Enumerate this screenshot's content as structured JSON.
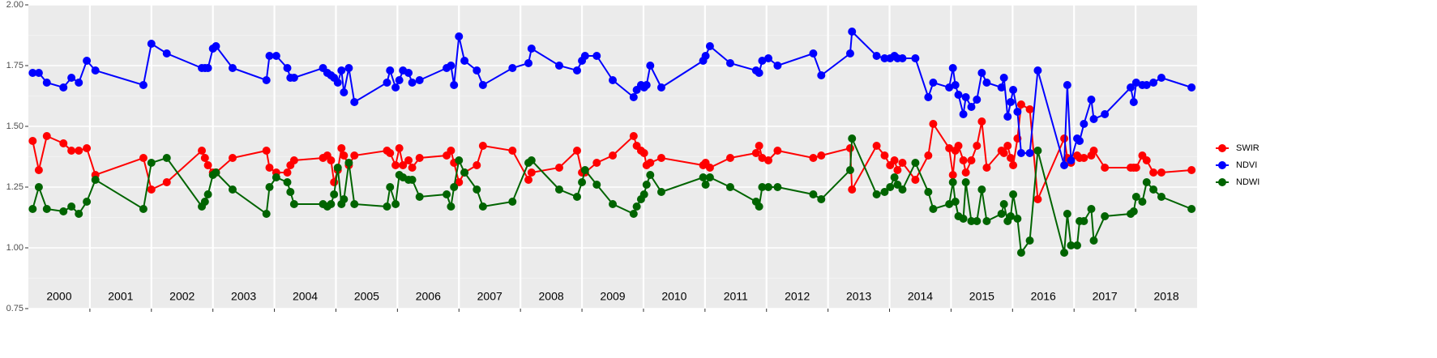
{
  "chart_data": {
    "type": "line",
    "x": [
      2000.07,
      2000.17,
      2000.3,
      2000.57,
      2000.7,
      2000.82,
      2000.95,
      2001.09,
      2001.87,
      2002.0,
      2002.25,
      2002.82,
      2002.87,
      2002.92,
      2003.0,
      2003.05,
      2003.32,
      2003.87,
      2003.92,
      2004.03,
      2004.21,
      2004.26,
      2004.32,
      2004.79,
      2004.86,
      2004.92,
      2004.97,
      2005.03,
      2005.09,
      2005.13,
      2005.21,
      2005.3,
      2005.83,
      2005.88,
      2005.97,
      2006.03,
      2006.09,
      2006.18,
      2006.24,
      2006.36,
      2006.8,
      2006.87,
      2006.92,
      2007.0,
      2007.09,
      2007.29,
      2007.39,
      2007.87,
      2008.13,
      2008.18,
      2008.63,
      2008.92,
      2009.0,
      2009.05,
      2009.24,
      2009.5,
      2009.84,
      2009.89,
      2009.96,
      2010.01,
      2010.05,
      2010.11,
      2010.29,
      2010.97,
      2011.01,
      2011.08,
      2011.41,
      2011.83,
      2011.88,
      2011.93,
      2012.03,
      2012.18,
      2012.76,
      2012.89,
      2013.36,
      2013.39,
      2013.79,
      2013.92,
      2014.01,
      2014.08,
      2014.13,
      2014.21,
      2014.42,
      2014.63,
      2014.71,
      2014.97,
      2015.03,
      2015.07,
      2015.12,
      2015.2,
      2015.24,
      2015.33,
      2015.42,
      2015.5,
      2015.58,
      2015.82,
      2015.86,
      2015.92,
      2015.97,
      2016.01,
      2016.08,
      2016.14,
      2016.28,
      2016.41,
      2016.84,
      2016.89,
      2016.95,
      2017.05,
      2017.09,
      2017.16,
      2017.28,
      2017.32,
      2017.5,
      2017.92,
      2017.97,
      2018.01,
      2018.11,
      2018.18,
      2018.29,
      2018.42,
      2018.91
    ],
    "series": [
      {
        "name": "SWIR",
        "color": "#ff0000",
        "values": [
          1.44,
          1.32,
          1.46,
          1.43,
          1.4,
          1.4,
          1.41,
          1.3,
          1.37,
          1.24,
          1.27,
          1.4,
          1.37,
          1.34,
          1.31,
          1.31,
          1.37,
          1.4,
          1.33,
          1.31,
          1.31,
          1.34,
          1.36,
          1.37,
          1.38,
          1.36,
          1.27,
          1.32,
          1.41,
          1.38,
          1.34,
          1.38,
          1.4,
          1.39,
          1.34,
          1.41,
          1.34,
          1.36,
          1.33,
          1.37,
          1.38,
          1.4,
          1.35,
          1.27,
          1.31,
          1.34,
          1.42,
          1.4,
          1.28,
          1.31,
          1.33,
          1.4,
          1.31,
          1.31,
          1.35,
          1.38,
          1.46,
          1.42,
          1.4,
          1.39,
          1.34,
          1.35,
          1.37,
          1.34,
          1.35,
          1.33,
          1.37,
          1.39,
          1.42,
          1.37,
          1.36,
          1.4,
          1.37,
          1.38,
          1.41,
          1.24,
          1.42,
          1.38,
          1.34,
          1.36,
          1.32,
          1.35,
          1.28,
          1.38,
          1.51,
          1.41,
          1.3,
          1.4,
          1.42,
          1.36,
          1.31,
          1.36,
          1.42,
          1.52,
          1.33,
          1.4,
          1.39,
          1.42,
          1.37,
          1.34,
          1.45,
          1.59,
          1.57,
          1.2,
          1.45,
          1.37,
          1.35,
          1.38,
          1.37,
          1.37,
          1.38,
          1.4,
          1.33,
          1.33,
          1.33,
          1.33,
          1.38,
          1.36,
          1.31,
          1.31,
          1.32
        ]
      },
      {
        "name": "NDVI",
        "color": "#0000ff",
        "values": [
          1.72,
          1.72,
          1.68,
          1.66,
          1.7,
          1.68,
          1.77,
          1.73,
          1.67,
          1.84,
          1.8,
          1.74,
          1.74,
          1.74,
          1.82,
          1.83,
          1.74,
          1.69,
          1.79,
          1.79,
          1.74,
          1.7,
          1.7,
          1.74,
          1.72,
          1.71,
          1.7,
          1.68,
          1.73,
          1.64,
          1.74,
          1.6,
          1.68,
          1.73,
          1.66,
          1.69,
          1.73,
          1.72,
          1.68,
          1.69,
          1.74,
          1.75,
          1.67,
          1.87,
          1.77,
          1.73,
          1.67,
          1.74,
          1.76,
          1.82,
          1.75,
          1.73,
          1.77,
          1.79,
          1.79,
          1.69,
          1.62,
          1.65,
          1.67,
          1.66,
          1.67,
          1.75,
          1.66,
          1.77,
          1.79,
          1.83,
          1.76,
          1.73,
          1.72,
          1.77,
          1.78,
          1.75,
          1.8,
          1.71,
          1.8,
          1.89,
          1.79,
          1.78,
          1.78,
          1.79,
          1.78,
          1.78,
          1.78,
          1.62,
          1.68,
          1.66,
          1.74,
          1.67,
          1.63,
          1.55,
          1.62,
          1.58,
          1.61,
          1.72,
          1.68,
          1.66,
          1.7,
          1.54,
          1.6,
          1.65,
          1.56,
          1.39,
          1.39,
          1.73,
          1.34,
          1.67,
          1.36,
          1.45,
          1.44,
          1.51,
          1.61,
          1.53,
          1.55,
          1.66,
          1.6,
          1.68,
          1.67,
          1.67,
          1.68,
          1.7,
          1.66
        ]
      },
      {
        "name": "NDWI",
        "color": "#006400",
        "values": [
          1.16,
          1.25,
          1.16,
          1.15,
          1.17,
          1.14,
          1.19,
          1.28,
          1.16,
          1.35,
          1.37,
          1.17,
          1.19,
          1.22,
          1.3,
          1.31,
          1.24,
          1.14,
          1.25,
          1.29,
          1.27,
          1.23,
          1.18,
          1.18,
          1.17,
          1.18,
          1.22,
          1.33,
          1.18,
          1.2,
          1.35,
          1.18,
          1.17,
          1.25,
          1.18,
          1.3,
          1.29,
          1.28,
          1.28,
          1.21,
          1.22,
          1.17,
          1.25,
          1.36,
          1.31,
          1.24,
          1.17,
          1.19,
          1.35,
          1.36,
          1.24,
          1.21,
          1.27,
          1.32,
          1.26,
          1.18,
          1.14,
          1.17,
          1.2,
          1.22,
          1.26,
          1.3,
          1.23,
          1.29,
          1.26,
          1.29,
          1.25,
          1.19,
          1.17,
          1.25,
          1.25,
          1.25,
          1.22,
          1.2,
          1.32,
          1.45,
          1.22,
          1.23,
          1.25,
          1.29,
          1.26,
          1.24,
          1.35,
          1.23,
          1.16,
          1.18,
          1.27,
          1.19,
          1.13,
          1.12,
          1.27,
          1.11,
          1.11,
          1.24,
          1.11,
          1.14,
          1.18,
          1.11,
          1.13,
          1.22,
          1.12,
          0.98,
          1.03,
          1.4,
          0.98,
          1.14,
          1.01,
          1.01,
          1.11,
          1.11,
          1.16,
          1.03,
          1.13,
          1.14,
          1.15,
          1.21,
          1.19,
          1.27,
          1.24,
          1.21,
          1.16
        ]
      }
    ],
    "xlim": [
      2000,
      2019
    ],
    "xticks": [
      2001,
      2002,
      2003,
      2004,
      2005,
      2006,
      2007,
      2008,
      2009,
      2010,
      2011,
      2012,
      2013,
      2014,
      2015,
      2016,
      2017,
      2018
    ],
    "year_labels": [
      "2000",
      "2001",
      "2002",
      "2003",
      "2004",
      "2005",
      "2006",
      "2007",
      "2008",
      "2009",
      "2010",
      "2011",
      "2012",
      "2013",
      "2014",
      "2015",
      "2016",
      "2017",
      "2018"
    ],
    "ylim": [
      0.75,
      2.0
    ],
    "yticks": [
      0.75,
      {
        "value": 1.0,
        "label": "1.00"
      },
      {
        "value": 1.25,
        "label": "1.25"
      },
      {
        "value": 1.5,
        "label": "1.50"
      },
      {
        "value": 1.75,
        "label": "1.75"
      },
      {
        "value": 2.0,
        "label": "2.00"
      }
    ],
    "grid": true,
    "legend": "right"
  }
}
